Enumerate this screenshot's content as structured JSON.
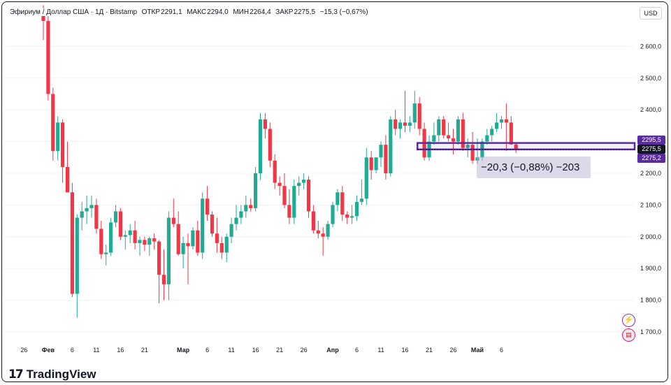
{
  "header": {
    "symbol": "Эфириум / Доллар США · 1Д · Bitstamp",
    "open_label": "ОТКР",
    "open_value": "2291,1",
    "high_label": "МАКС",
    "high_value": "2294,0",
    "low_label": "МИН",
    "low_value": "2264,4",
    "close_label": "ЗАКР",
    "close_value": "2275,5",
    "change": "−15,3 (−0,67%)"
  },
  "currency": "USD",
  "price_labels": {
    "upper": "2295,5",
    "current": "2275,5",
    "lower": "2275,2"
  },
  "measure_label": "−20,3 (−0,88%) −203",
  "logo": {
    "mark": "17",
    "text": "TradingView"
  },
  "icons": {
    "lightning": "lightning-icon",
    "flag": "us-flag-icon"
  },
  "colors": {
    "up": "#22ab94",
    "down": "#f23645",
    "accent": "#5b2ca0",
    "text": "#131722"
  },
  "chart_data": {
    "type": "candlestick",
    "ylim": [
      1640,
      2740
    ],
    "yticks": [
      {
        "value": 1700,
        "label": "1 700,0"
      },
      {
        "value": 1800,
        "label": "1 800,0"
      },
      {
        "value": 1900,
        "label": "1 900,0"
      },
      {
        "value": 2000,
        "label": "2 000,0"
      },
      {
        "value": 2100,
        "label": "2 100,0"
      },
      {
        "value": 2200,
        "label": "2 200,0"
      },
      {
        "value": 2300,
        "label": "2 300,0"
      },
      {
        "value": 2400,
        "label": "2 400,0"
      },
      {
        "value": 2500,
        "label": "2 500,0"
      },
      {
        "value": 2600,
        "label": "2 600,0"
      }
    ],
    "xticks": [
      {
        "index": -4,
        "label": "26"
      },
      {
        "index": 1,
        "label": "Фев"
      },
      {
        "index": 6,
        "label": "6"
      },
      {
        "index": 11,
        "label": "11"
      },
      {
        "index": 16,
        "label": "16"
      },
      {
        "index": 21,
        "label": "21"
      },
      {
        "index": 29,
        "label": "Мар"
      },
      {
        "index": 34,
        "label": "6"
      },
      {
        "index": 39,
        "label": "11"
      },
      {
        "index": 44,
        "label": "16"
      },
      {
        "index": 49,
        "label": "21"
      },
      {
        "index": 54,
        "label": "26"
      },
      {
        "index": 60,
        "label": "Апр"
      },
      {
        "index": 65,
        "label": "6"
      },
      {
        "index": 70,
        "label": "11"
      },
      {
        "index": 75,
        "label": "16"
      },
      {
        "index": 80,
        "label": "21"
      },
      {
        "index": 85,
        "label": "26"
      },
      {
        "index": 90,
        "label": "Май"
      },
      {
        "index": 95,
        "label": "6"
      }
    ],
    "candles": [
      {
        "o": 2710,
        "h": 2730,
        "l": 2620,
        "c": 2680
      },
      {
        "o": 2680,
        "h": 2710,
        "l": 2430,
        "c": 2450
      },
      {
        "o": 2450,
        "h": 2470,
        "l": 2240,
        "c": 2270
      },
      {
        "o": 2270,
        "h": 2380,
        "l": 2240,
        "c": 2360
      },
      {
        "o": 2360,
        "h": 2370,
        "l": 2170,
        "c": 2220
      },
      {
        "o": 2220,
        "h": 2300,
        "l": 2140,
        "c": 2140
      },
      {
        "o": 2140,
        "h": 2170,
        "l": 1810,
        "c": 1820
      },
      {
        "o": 1820,
        "h": 2070,
        "l": 1745,
        "c": 2060
      },
      {
        "o": 2060,
        "h": 2110,
        "l": 2020,
        "c": 2080
      },
      {
        "o": 2080,
        "h": 2130,
        "l": 2040,
        "c": 2090
      },
      {
        "o": 2090,
        "h": 2130,
        "l": 2060,
        "c": 2100
      },
      {
        "o": 2100,
        "h": 2120,
        "l": 2010,
        "c": 2025
      },
      {
        "o": 2025,
        "h": 2050,
        "l": 1930,
        "c": 1945
      },
      {
        "o": 1945,
        "h": 1975,
        "l": 1910,
        "c": 1950
      },
      {
        "o": 1950,
        "h": 2060,
        "l": 1940,
        "c": 2045
      },
      {
        "o": 2045,
        "h": 2100,
        "l": 2030,
        "c": 2080
      },
      {
        "o": 2080,
        "h": 2090,
        "l": 1990,
        "c": 2000
      },
      {
        "o": 2000,
        "h": 2020,
        "l": 1960,
        "c": 2005
      },
      {
        "o": 2005,
        "h": 2040,
        "l": 1980,
        "c": 2020
      },
      {
        "o": 2020,
        "h": 2050,
        "l": 1960,
        "c": 1980
      },
      {
        "o": 1980,
        "h": 2000,
        "l": 1940,
        "c": 1990
      },
      {
        "o": 1990,
        "h": 2000,
        "l": 1955,
        "c": 1975
      },
      {
        "o": 1975,
        "h": 2000,
        "l": 1940,
        "c": 1995
      },
      {
        "o": 1995,
        "h": 2010,
        "l": 1960,
        "c": 1985
      },
      {
        "o": 1985,
        "h": 1990,
        "l": 1790,
        "c": 1880
      },
      {
        "o": 1880,
        "h": 1960,
        "l": 1800,
        "c": 1850
      },
      {
        "o": 1850,
        "h": 2080,
        "l": 1800,
        "c": 2060
      },
      {
        "o": 2060,
        "h": 2120,
        "l": 2030,
        "c": 2040
      },
      {
        "o": 2040,
        "h": 2080,
        "l": 1940,
        "c": 1945
      },
      {
        "o": 1945,
        "h": 2000,
        "l": 1900,
        "c": 1980
      },
      {
        "o": 1980,
        "h": 2010,
        "l": 1850,
        "c": 1970
      },
      {
        "o": 1970,
        "h": 2030,
        "l": 1960,
        "c": 2020
      },
      {
        "o": 2020,
        "h": 2050,
        "l": 1940,
        "c": 1950
      },
      {
        "o": 1950,
        "h": 2140,
        "l": 1930,
        "c": 2120
      },
      {
        "o": 2120,
        "h": 2160,
        "l": 2050,
        "c": 2070
      },
      {
        "o": 2070,
        "h": 2080,
        "l": 2000,
        "c": 2010
      },
      {
        "o": 2010,
        "h": 2060,
        "l": 1950,
        "c": 1980
      },
      {
        "o": 1980,
        "h": 2000,
        "l": 1930,
        "c": 1950
      },
      {
        "o": 1950,
        "h": 2010,
        "l": 1920,
        "c": 2000
      },
      {
        "o": 2000,
        "h": 2060,
        "l": 1980,
        "c": 2040
      },
      {
        "o": 2040,
        "h": 2100,
        "l": 2020,
        "c": 2060
      },
      {
        "o": 2060,
        "h": 2100,
        "l": 2040,
        "c": 2080
      },
      {
        "o": 2080,
        "h": 2130,
        "l": 2060,
        "c": 2100
      },
      {
        "o": 2100,
        "h": 2120,
        "l": 2080,
        "c": 2090
      },
      {
        "o": 2090,
        "h": 2220,
        "l": 2080,
        "c": 2200
      },
      {
        "o": 2200,
        "h": 2390,
        "l": 2180,
        "c": 2370
      },
      {
        "o": 2370,
        "h": 2390,
        "l": 2310,
        "c": 2340
      },
      {
        "o": 2340,
        "h": 2360,
        "l": 2220,
        "c": 2240
      },
      {
        "o": 2240,
        "h": 2260,
        "l": 2150,
        "c": 2170
      },
      {
        "o": 2170,
        "h": 2190,
        "l": 2130,
        "c": 2160
      },
      {
        "o": 2160,
        "h": 2200,
        "l": 2090,
        "c": 2100
      },
      {
        "o": 2100,
        "h": 2150,
        "l": 2040,
        "c": 2060
      },
      {
        "o": 2060,
        "h": 2180,
        "l": 2040,
        "c": 2160
      },
      {
        "o": 2160,
        "h": 2190,
        "l": 2130,
        "c": 2170
      },
      {
        "o": 2170,
        "h": 2200,
        "l": 2150,
        "c": 2180
      },
      {
        "o": 2180,
        "h": 2190,
        "l": 2060,
        "c": 2080
      },
      {
        "o": 2080,
        "h": 2100,
        "l": 2010,
        "c": 2020
      },
      {
        "o": 2020,
        "h": 2050,
        "l": 1995,
        "c": 2010
      },
      {
        "o": 2010,
        "h": 2030,
        "l": 1940,
        "c": 2000
      },
      {
        "o": 2000,
        "h": 2050,
        "l": 1990,
        "c": 2040
      },
      {
        "o": 2040,
        "h": 2110,
        "l": 2030,
        "c": 2100
      },
      {
        "o": 2100,
        "h": 2150,
        "l": 2080,
        "c": 2140
      },
      {
        "o": 2140,
        "h": 2160,
        "l": 2050,
        "c": 2070
      },
      {
        "o": 2070,
        "h": 2080,
        "l": 2040,
        "c": 2060
      },
      {
        "o": 2060,
        "h": 2100,
        "l": 2040,
        "c": 2065
      },
      {
        "o": 2065,
        "h": 2130,
        "l": 2050,
        "c": 2110
      },
      {
        "o": 2110,
        "h": 2180,
        "l": 2100,
        "c": 2120
      },
      {
        "o": 2120,
        "h": 2280,
        "l": 2100,
        "c": 2250
      },
      {
        "o": 2250,
        "h": 2270,
        "l": 2180,
        "c": 2210
      },
      {
        "o": 2210,
        "h": 2250,
        "l": 2200,
        "c": 2250
      },
      {
        "o": 2250,
        "h": 2300,
        "l": 2220,
        "c": 2290
      },
      {
        "o": 2290,
        "h": 2320,
        "l": 2180,
        "c": 2200
      },
      {
        "o": 2200,
        "h": 2380,
        "l": 2190,
        "c": 2370
      },
      {
        "o": 2370,
        "h": 2400,
        "l": 2320,
        "c": 2340
      },
      {
        "o": 2340,
        "h": 2370,
        "l": 2310,
        "c": 2360
      },
      {
        "o": 2360,
        "h": 2460,
        "l": 2330,
        "c": 2350
      },
      {
        "o": 2350,
        "h": 2380,
        "l": 2330,
        "c": 2360
      },
      {
        "o": 2360,
        "h": 2460,
        "l": 2340,
        "c": 2420
      },
      {
        "o": 2420,
        "h": 2440,
        "l": 2320,
        "c": 2340
      },
      {
        "o": 2340,
        "h": 2360,
        "l": 2240,
        "c": 2250
      },
      {
        "o": 2250,
        "h": 2320,
        "l": 2240,
        "c": 2300
      },
      {
        "o": 2300,
        "h": 2360,
        "l": 2290,
        "c": 2320
      },
      {
        "o": 2320,
        "h": 2380,
        "l": 2300,
        "c": 2370
      },
      {
        "o": 2370,
        "h": 2380,
        "l": 2310,
        "c": 2320
      },
      {
        "o": 2320,
        "h": 2360,
        "l": 2300,
        "c": 2310
      },
      {
        "o": 2310,
        "h": 2340,
        "l": 2260,
        "c": 2300
      },
      {
        "o": 2300,
        "h": 2380,
        "l": 2290,
        "c": 2370
      },
      {
        "o": 2370,
        "h": 2390,
        "l": 2270,
        "c": 2280
      },
      {
        "o": 2280,
        "h": 2310,
        "l": 2250,
        "c": 2290
      },
      {
        "o": 2290,
        "h": 2330,
        "l": 2230,
        "c": 2240
      },
      {
        "o": 2240,
        "h": 2310,
        "l": 2230,
        "c": 2250
      },
      {
        "o": 2250,
        "h": 2310,
        "l": 2240,
        "c": 2300
      },
      {
        "o": 2300,
        "h": 2340,
        "l": 2290,
        "c": 2320
      },
      {
        "o": 2320,
        "h": 2350,
        "l": 2300,
        "c": 2340
      },
      {
        "o": 2340,
        "h": 2390,
        "l": 2330,
        "c": 2360
      },
      {
        "o": 2360,
        "h": 2380,
        "l": 2340,
        "c": 2370
      },
      {
        "o": 2370,
        "h": 2420,
        "l": 2270,
        "c": 2360
      },
      {
        "o": 2360,
        "h": 2380,
        "l": 2290,
        "c": 2291
      },
      {
        "o": 2291.1,
        "h": 2294,
        "l": 2264.4,
        "c": 2275.5
      }
    ],
    "ruler": {
      "from_index": 78,
      "to_index": 98,
      "from_value": 2295.5,
      "to_value": 2275.2
    }
  }
}
